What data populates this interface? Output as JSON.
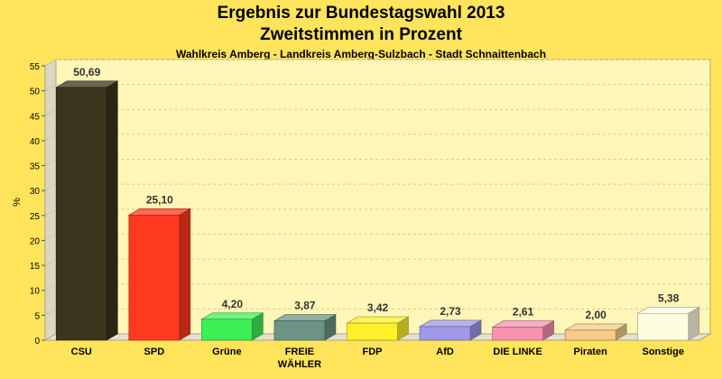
{
  "chart_data": {
    "type": "bar",
    "title": "Ergebnis zur Bundestagswahl 2013",
    "subtitle": "Zweitstimmen in Prozent",
    "subsubtitle": "Wahlkreis Amberg - Landkreis Amberg-Sulzbach - Stadt Schnaittenbach",
    "ylabel": "%",
    "ylim": [
      0,
      55
    ],
    "yticks": [
      0,
      5,
      10,
      15,
      20,
      25,
      30,
      35,
      40,
      45,
      50,
      55
    ],
    "grid": true,
    "categories": [
      "CSU",
      "SPD",
      "Grüne",
      "FREIE WÄHLER",
      "FDP",
      "AfD",
      "DIE LINKE",
      "Piraten",
      "Sonstige"
    ],
    "category_lines": [
      [
        "CSU"
      ],
      [
        "SPD"
      ],
      [
        "Grüne"
      ],
      [
        "FREIE",
        "WÄHLER"
      ],
      [
        "FDP"
      ],
      [
        "AfD"
      ],
      [
        "DIE LINKE"
      ],
      [
        "Piraten"
      ],
      [
        "Sonstige"
      ]
    ],
    "values": [
      50.69,
      25.1,
      4.2,
      3.87,
      3.42,
      2.73,
      2.61,
      2.0,
      5.38
    ],
    "value_labels": [
      "50,69",
      "25,10",
      "4,20",
      "3,87",
      "3,42",
      "2,73",
      "2,61",
      "2,00",
      "5,38"
    ],
    "colors": [
      "#3A341C",
      "#FF3A1F",
      "#3DF055",
      "#6B9484",
      "#FFF02A",
      "#9E9AE8",
      "#F792B0",
      "#F6CC88",
      "#FFFDE0"
    ]
  }
}
